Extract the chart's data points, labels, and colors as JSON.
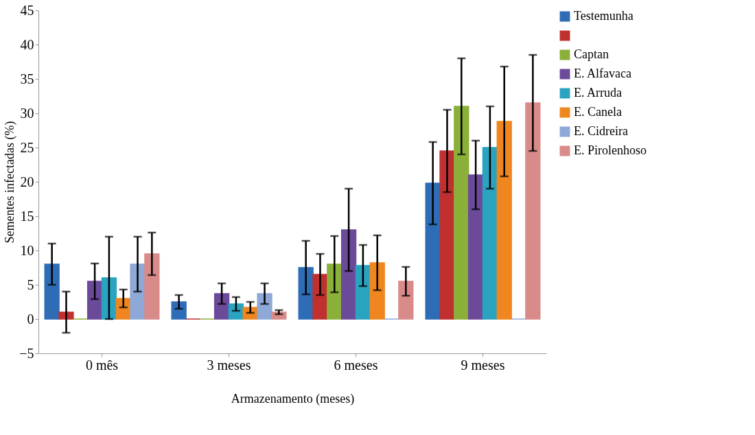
{
  "chart_data": {
    "type": "bar",
    "xlabel": "Armazenamento (meses)",
    "ylabel": "Sementes infectadas (%)",
    "categories": [
      "0 mês",
      "3 meses",
      "6 meses",
      "9 meses"
    ],
    "series": [
      {
        "name": "Testemunha",
        "color": "#2e6db5",
        "values": [
          8,
          2.5,
          7.5,
          19.8
        ],
        "errors": [
          3,
          1,
          3.9,
          6
        ]
      },
      {
        "name": null,
        "color": "#c0302f",
        "values": [
          1,
          0,
          6.5,
          24.5
        ],
        "errors": [
          3,
          null,
          3,
          6
        ]
      },
      {
        "name": "Captan",
        "color": "#8bb03a",
        "values": [
          0,
          0,
          8,
          31
        ],
        "errors": [
          null,
          null,
          4.1,
          7
        ]
      },
      {
        "name": "E. Alfavaca",
        "color": "#6c4a9a",
        "values": [
          5.5,
          3.7,
          13,
          21
        ],
        "errors": [
          2.6,
          1.5,
          6,
          5
        ]
      },
      {
        "name": "E. Arruda",
        "color": "#2aa3c0",
        "values": [
          6,
          2.2,
          7.8,
          25
        ],
        "errors": [
          6,
          1,
          3,
          6
        ]
      },
      {
        "name": "E. Canela",
        "color": "#f0861f",
        "values": [
          3,
          1.7,
          8.2,
          28.8
        ],
        "errors": [
          1.3,
          0.8,
          4,
          8
        ]
      },
      {
        "name": "E. Cidreira",
        "color": "#8ea8d8",
        "values": [
          8,
          3.7,
          0,
          0
        ],
        "errors": [
          4,
          1.5,
          null,
          null
        ]
      },
      {
        "name": "E. Pirolenhoso",
        "color": "#d98b8a",
        "values": [
          9.5,
          1,
          5.5,
          31.5
        ],
        "errors": [
          3.1,
          0.3,
          2.1,
          7
        ]
      }
    ],
    "ylim": [
      -5,
      45
    ],
    "yticks": [
      -5,
      0,
      5,
      10,
      15,
      20,
      25,
      30,
      35,
      40,
      45
    ],
    "grid": false,
    "legend": "right"
  }
}
